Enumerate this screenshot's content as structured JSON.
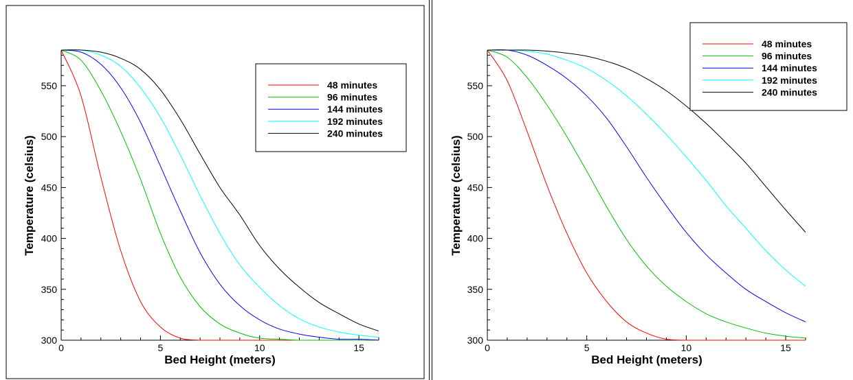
{
  "chart_data": [
    {
      "type": "line",
      "title": "",
      "xlabel": "Bed Height (meters)",
      "ylabel": "Temperature (celsius)",
      "xlim": [
        0,
        16
      ],
      "ylim": [
        300,
        585
      ],
      "xticks": [
        "0",
        "5",
        "10",
        "15"
      ],
      "yticks": [
        "300",
        "350",
        "400",
        "450",
        "500",
        "550"
      ],
      "grid": false,
      "legend": "top-right",
      "x": [
        0,
        1,
        2,
        3,
        4,
        5,
        6,
        7,
        8,
        9,
        10,
        11,
        12,
        13,
        14,
        15,
        16
      ],
      "series": [
        {
          "name": "48 minutes",
          "color": "#ff0000",
          "values": [
            585,
            540,
            460,
            388,
            338,
            313,
            302,
            300,
            300,
            300,
            300,
            300,
            300,
            300,
            300,
            300,
            300
          ]
        },
        {
          "name": "96 minutes",
          "color": "#00c000",
          "values": [
            585,
            575,
            545,
            505,
            458,
            405,
            362,
            333,
            316,
            307,
            302,
            301,
            300,
            300,
            300,
            300,
            300
          ]
        },
        {
          "name": "144 minutes",
          "color": "#0000ff",
          "values": [
            585,
            583,
            571,
            548,
            514,
            471,
            427,
            386,
            355,
            334,
            320,
            311,
            306,
            303,
            301,
            301,
            300
          ]
        },
        {
          "name": "192 minutes",
          "color": "#00ffff",
          "values": [
            585,
            585,
            580,
            569,
            548,
            519,
            482,
            442,
            405,
            374,
            352,
            334,
            321,
            313,
            308,
            305,
            303
          ]
        },
        {
          "name": "240 minutes",
          "color": "#000000",
          "values": [
            585,
            585,
            583,
            577,
            566,
            546,
            517,
            483,
            450,
            423,
            393,
            370,
            352,
            337,
            326,
            316,
            309
          ]
        }
      ]
    },
    {
      "type": "line",
      "title": "",
      "xlabel": "Bed Height (meters)",
      "ylabel": "Temperature (celsius)",
      "xlim": [
        0,
        16
      ],
      "ylim": [
        300,
        585
      ],
      "xticks": [
        "0",
        "5",
        "10",
        "15"
      ],
      "yticks": [
        "300",
        "350",
        "400",
        "450",
        "500",
        "550"
      ],
      "grid": false,
      "legend": "top-right",
      "x": [
        0,
        1,
        2,
        3,
        4,
        5,
        6,
        7,
        8,
        9,
        10,
        11,
        12,
        13,
        14,
        15,
        16
      ],
      "series": [
        {
          "name": "48 minutes",
          "color": "#ff0000",
          "values": [
            585,
            555,
            505,
            452,
            405,
            366,
            338,
            318,
            307,
            301,
            300,
            300,
            300,
            300,
            300,
            300,
            300
          ]
        },
        {
          "name": "96 minutes",
          "color": "#00c000",
          "values": [
            585,
            578,
            558,
            531,
            500,
            466,
            431,
            399,
            373,
            353,
            338,
            326,
            318,
            312,
            307,
            304,
            302
          ]
        },
        {
          "name": "144 minutes",
          "color": "#0000ff",
          "values": [
            585,
            585,
            580,
            570,
            557,
            540,
            518,
            490,
            460,
            432,
            406,
            384,
            366,
            350,
            338,
            327,
            318
          ]
        },
        {
          "name": "192 minutes",
          "color": "#00ffff",
          "values": [
            585,
            585,
            584,
            581,
            575,
            567,
            555,
            540,
            522,
            502,
            480,
            457,
            432,
            410,
            388,
            369,
            353
          ]
        },
        {
          "name": "240 minutes",
          "color": "#000000",
          "values": [
            585,
            585,
            585,
            584,
            582,
            579,
            574,
            567,
            557,
            545,
            530,
            513,
            494,
            474,
            451,
            428,
            406
          ]
        }
      ]
    }
  ]
}
